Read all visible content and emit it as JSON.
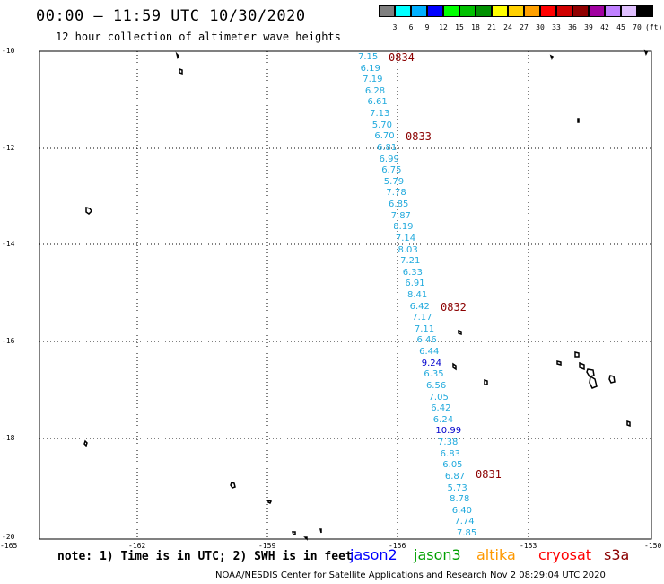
{
  "header": {
    "title": "00:00 – 11:59 UTC 10/30/2020",
    "subtitle": "12 hour collection of altimeter wave heights"
  },
  "colorbar": {
    "labels": [
      "3",
      "6",
      "9",
      "12",
      "15",
      "18",
      "21",
      "24",
      "27",
      "30",
      "33",
      "36",
      "39",
      "42",
      "45",
      "70",
      "(ft)"
    ],
    "colors": [
      "#7f7f7f",
      "#00ffff",
      "#00b0ff",
      "#0000ff",
      "#00ff00",
      "#00c000",
      "#009000",
      "#ffff00",
      "#ffd000",
      "#ffa000",
      "#ff0000",
      "#d00000",
      "#900000",
      "#a000a0",
      "#c080ff",
      "#e0c0ff",
      "#000000"
    ]
  },
  "axes": {
    "y_labels": [
      "-10",
      "-12",
      "-14",
      "-16",
      "-18",
      "-20"
    ],
    "x_labels": [
      "-165",
      "-162",
      "-159",
      "-156",
      "-153",
      "-150"
    ]
  },
  "track": {
    "times": [
      "0834",
      "0833",
      "0832",
      "0831"
    ],
    "time_color": "#8b0000",
    "wave_heights": [
      {
        "v": "7.15",
        "c": "#22aadd"
      },
      {
        "v": "6.19",
        "c": "#22aadd"
      },
      {
        "v": "7.19",
        "c": "#22aadd"
      },
      {
        "v": "6.28",
        "c": "#22aadd"
      },
      {
        "v": "6.61",
        "c": "#22aadd"
      },
      {
        "v": "7.13",
        "c": "#22aadd"
      },
      {
        "v": "5.70",
        "c": "#22aadd"
      },
      {
        "v": "6.70",
        "c": "#22aadd"
      },
      {
        "v": "6.81",
        "c": "#22aadd"
      },
      {
        "v": "6.99",
        "c": "#22aadd"
      },
      {
        "v": "6.75",
        "c": "#22aadd"
      },
      {
        "v": "5.79",
        "c": "#22aadd"
      },
      {
        "v": "7.78",
        "c": "#22aadd"
      },
      {
        "v": "6.85",
        "c": "#22aadd"
      },
      {
        "v": "7.87",
        "c": "#22aadd"
      },
      {
        "v": "8.19",
        "c": "#22aadd"
      },
      {
        "v": "7.14",
        "c": "#22aadd"
      },
      {
        "v": "8.03",
        "c": "#22aadd"
      },
      {
        "v": "7.21",
        "c": "#22aadd"
      },
      {
        "v": "6.33",
        "c": "#22aadd"
      },
      {
        "v": "6.91",
        "c": "#22aadd"
      },
      {
        "v": "8.41",
        "c": "#22aadd"
      },
      {
        "v": "6.42",
        "c": "#22aadd"
      },
      {
        "v": "7.17",
        "c": "#22aadd"
      },
      {
        "v": "7.11",
        "c": "#22aadd"
      },
      {
        "v": "6.46",
        "c": "#22aadd"
      },
      {
        "v": "6.44",
        "c": "#22aadd"
      },
      {
        "v": "9.24",
        "c": "#0000cc"
      },
      {
        "v": "6.35",
        "c": "#22aadd"
      },
      {
        "v": "6.56",
        "c": "#22aadd"
      },
      {
        "v": "7.05",
        "c": "#22aadd"
      },
      {
        "v": "6.42",
        "c": "#22aadd"
      },
      {
        "v": "6.24",
        "c": "#22aadd"
      },
      {
        "v": "10.99",
        "c": "#0000cc"
      },
      {
        "v": "7.38",
        "c": "#22aadd"
      },
      {
        "v": "6.83",
        "c": "#22aadd"
      },
      {
        "v": "6.05",
        "c": "#22aadd"
      },
      {
        "v": "6.87",
        "c": "#22aadd"
      },
      {
        "v": "5.73",
        "c": "#22aadd"
      },
      {
        "v": "8.78",
        "c": "#22aadd"
      },
      {
        "v": "6.40",
        "c": "#22aadd"
      },
      {
        "v": "7.74",
        "c": "#22aadd"
      },
      {
        "v": "7.85",
        "c": "#22aadd"
      }
    ]
  },
  "footer": {
    "note": "note: 1) Time is in UTC; 2) SWH is in feet",
    "legend": [
      {
        "label": "jason2",
        "color": "#0000ff"
      },
      {
        "label": "jason3",
        "color": "#00a000"
      },
      {
        "label": "altika",
        "color": "#ff9900"
      },
      {
        "label": "cryosat",
        "color": "#ff0000"
      },
      {
        "label": "s3a",
        "color": "#8b0000"
      }
    ],
    "credit": "NOAA/NESDIS Center for Satellite Applications and Research   Nov  2 08:29:04 UTC 2020"
  }
}
